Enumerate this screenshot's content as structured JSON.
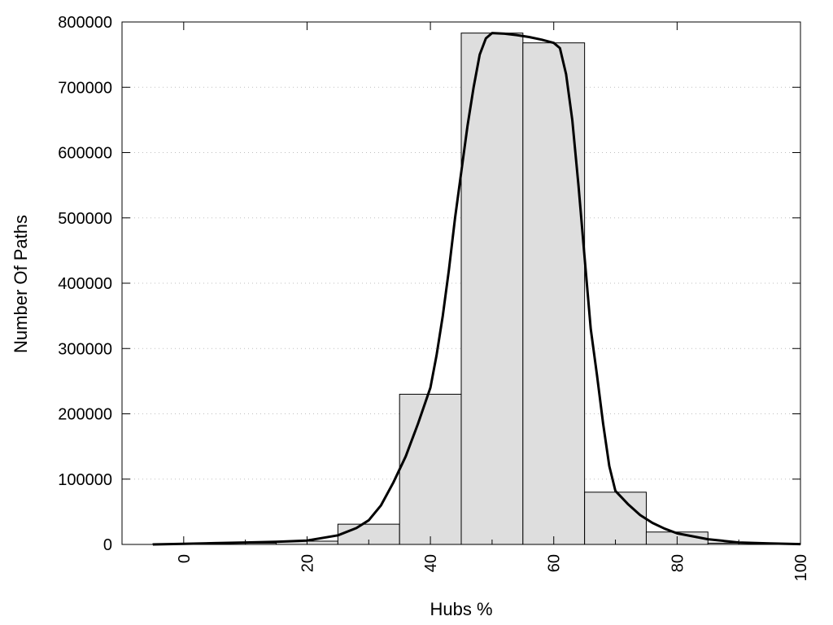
{
  "chart_data": {
    "type": "bar",
    "xlabel": "Hubs %",
    "ylabel": "Number Of Paths",
    "xlim": [
      -10,
      100
    ],
    "ylim": [
      0,
      800000
    ],
    "grid": "horizontal dotted",
    "x_ticks": [
      "0",
      "20",
      "40",
      "60",
      "80",
      "100"
    ],
    "y_ticks": [
      "0",
      "100000",
      "200000",
      "300000",
      "400000",
      "500000",
      "600000",
      "700000",
      "800000"
    ],
    "bin_width": 10,
    "bins": [
      {
        "center": 0,
        "value": 1000
      },
      {
        "center": 10,
        "value": 2000
      },
      {
        "center": 20,
        "value": 5000
      },
      {
        "center": 30,
        "value": 31000
      },
      {
        "center": 40,
        "value": 230000
      },
      {
        "center": 50,
        "value": 783000
      },
      {
        "center": 60,
        "value": 768000
      },
      {
        "center": 70,
        "value": 80000
      },
      {
        "center": 80,
        "value": 19000
      },
      {
        "center": 90,
        "value": 2000
      }
    ],
    "curve": {
      "x": [
        -5,
        0,
        5,
        10,
        15,
        20,
        25,
        28,
        30,
        32,
        34,
        36,
        38,
        40,
        41,
        42,
        43,
        44,
        45,
        46,
        47,
        48,
        49,
        50,
        52,
        54,
        56,
        58,
        60,
        61,
        62,
        63,
        64,
        65,
        66,
        67,
        68,
        69,
        70,
        72,
        74,
        76,
        78,
        80,
        85,
        90,
        95,
        100
      ],
      "y": [
        0,
        1000,
        2000,
        3000,
        4000,
        6000,
        14000,
        25000,
        37000,
        60000,
        95000,
        135000,
        185000,
        240000,
        290000,
        350000,
        420000,
        500000,
        570000,
        640000,
        700000,
        750000,
        775000,
        783000,
        782000,
        780000,
        777000,
        773000,
        768000,
        760000,
        720000,
        650000,
        550000,
        440000,
        330000,
        260000,
        185000,
        120000,
        82000,
        62000,
        45000,
        33000,
        24000,
        17000,
        8000,
        3000,
        1500,
        500
      ]
    }
  }
}
